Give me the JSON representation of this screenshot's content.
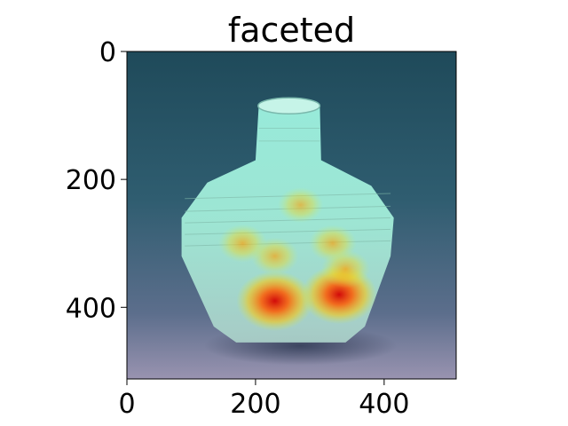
{
  "chart_data": {
    "type": "heatmap",
    "title": "faceted",
    "xlabel": "",
    "ylabel": "",
    "xlim": [
      0,
      512
    ],
    "ylim": [
      512,
      0
    ],
    "x_ticks": [
      0,
      200,
      400
    ],
    "y_ticks": [
      0,
      200,
      400
    ],
    "grid": false,
    "image_description": "saliency heatmap overlaid on a photograph of a faceted ceramic vase",
    "colormap": "jet",
    "hotspots": [
      {
        "x": 230,
        "y": 390,
        "intensity": 1.0
      },
      {
        "x": 330,
        "y": 380,
        "intensity": 0.95
      },
      {
        "x": 180,
        "y": 300,
        "intensity": 0.6
      },
      {
        "x": 230,
        "y": 320,
        "intensity": 0.55
      },
      {
        "x": 320,
        "y": 300,
        "intensity": 0.55
      },
      {
        "x": 340,
        "y": 340,
        "intensity": 0.6
      },
      {
        "x": 270,
        "y": 240,
        "intensity": 0.45
      }
    ]
  },
  "colors": {
    "background_dark": "#2a4a5e",
    "background_light": "#8d8aa8",
    "vase_cyan": "#8ff0dd",
    "hot": "#e80000",
    "warm": "#ff9a00",
    "mid": "#e8e01a"
  }
}
